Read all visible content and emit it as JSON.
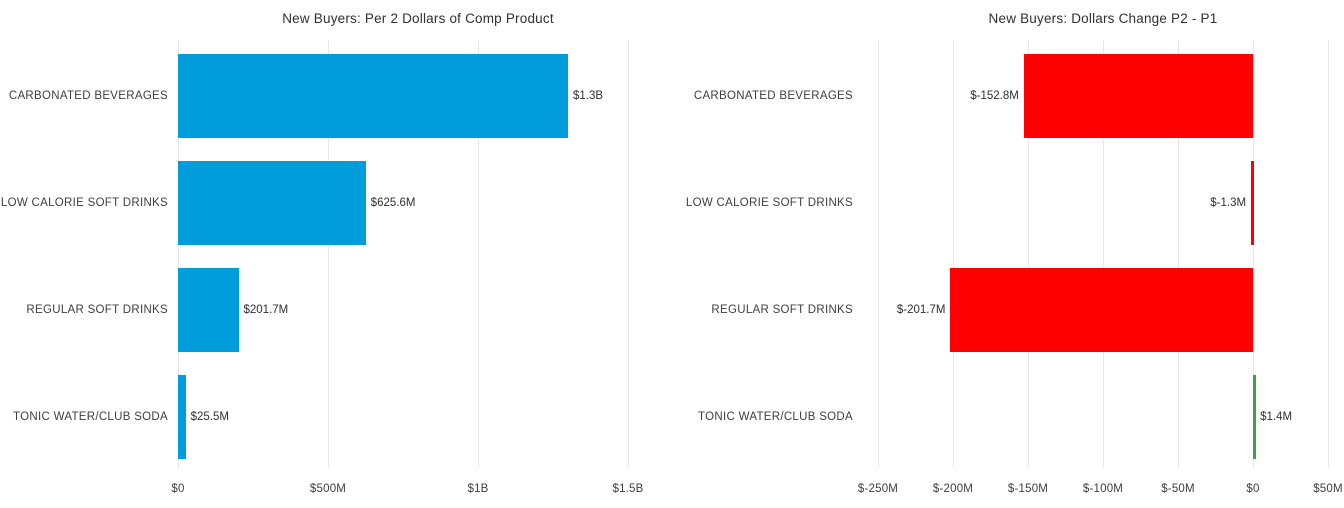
{
  "colors": {
    "bar_blue": "#009CDC",
    "bar_negative_red": "#FF0000",
    "bar_positive_green": "#3FA044",
    "gridline": "#E8E8E8",
    "title_text": "#303030",
    "label_text": "#3E3E3E",
    "background": "#FFFFFF"
  },
  "chart_data": [
    {
      "type": "bar",
      "orientation": "horizontal",
      "title": "New Buyers: Per 2 Dollars of Comp Product",
      "categories": [
        "CARBONATED BEVERAGES",
        "LOW CALORIE SOFT DRINKS",
        "REGULAR SOFT DRINKS",
        "TONIC WATER/CLUB SODA"
      ],
      "values_millions": [
        1300,
        625.6,
        201.7,
        25.5
      ],
      "value_labels": [
        "$1.3B",
        "$625.6M",
        "$201.7M",
        "$25.5M"
      ],
      "bar_colors": [
        "#009CDC",
        "#009CDC",
        "#009CDC",
        "#009CDC"
      ],
      "xlim_millions": [
        0,
        1600
      ],
      "x_ticks": [
        {
          "value": 0,
          "label": "$0"
        },
        {
          "value": 500,
          "label": "$500M"
        },
        {
          "value": 1000,
          "label": "$1B"
        },
        {
          "value": 1500,
          "label": "$1.5B"
        }
      ],
      "grid": true,
      "legend": false
    },
    {
      "type": "bar",
      "orientation": "horizontal",
      "title": "New Buyers: Dollars Change P2 - P1",
      "categories": [
        "CARBONATED BEVERAGES",
        "LOW CALORIE SOFT DRINKS",
        "REGULAR SOFT DRINKS",
        "TONIC WATER/CLUB SODA"
      ],
      "values_millions": [
        -152.8,
        -1.3,
        -201.7,
        1.4
      ],
      "value_labels": [
        "$-152.8M",
        "$-1.3M",
        "$-201.7M",
        "$1.4M"
      ],
      "bar_colors": [
        "#FF0000",
        "#FF0000",
        "#FF0000",
        "#3FA044"
      ],
      "xlim_millions": [
        -260,
        60
      ],
      "x_ticks": [
        {
          "value": -250,
          "label": "$-250M"
        },
        {
          "value": -200,
          "label": "$-200M"
        },
        {
          "value": -150,
          "label": "$-150M"
        },
        {
          "value": -100,
          "label": "$-100M"
        },
        {
          "value": -50,
          "label": "$-50M"
        },
        {
          "value": 0,
          "label": "$0"
        },
        {
          "value": 50,
          "label": "$50M"
        }
      ],
      "grid": true,
      "legend": false
    }
  ]
}
